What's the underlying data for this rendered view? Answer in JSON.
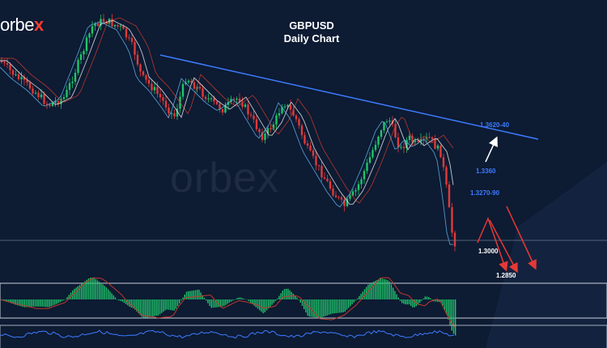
{
  "brand": {
    "prefix": "orbe",
    "x": "x"
  },
  "watermark": "orbex",
  "chart_data": {
    "type": "candlestick",
    "title": "GBPUSD",
    "subtitle": "Daily Chart",
    "trendline": "descending resistance",
    "price_levels": [
      {
        "label": "1.3620-40",
        "color": "#3d7bff"
      },
      {
        "label": "1.3360",
        "color": "#3d7bff"
      },
      {
        "label": "1.3270-90",
        "color": "#3d7bff"
      },
      {
        "label": "1.3000",
        "color": "#ffffff"
      },
      {
        "label": "1.2850",
        "color": "#ffffff"
      }
    ],
    "annotations": {
      "up_arrow": "white, bullish scenario toward 1.3620-40",
      "down_arrows": "red, bearish scenarios toward 1.3000 and 1.2850"
    },
    "series": [
      {
        "type": "candles",
        "up_color": "#21c46b",
        "down_color": "#e03a3a"
      },
      {
        "type": "moving_average",
        "color": "#c0392b"
      },
      {
        "type": "moving_average",
        "color": "#e6e6e6"
      },
      {
        "type": "moving_average",
        "color": "#5dade2"
      }
    ],
    "indicators": [
      {
        "type": "histogram",
        "up_color": "#21c46b",
        "signal_color": "#c0392b"
      },
      {
        "type": "oscillator",
        "color": "#3d7bff"
      }
    ],
    "grid": false
  }
}
